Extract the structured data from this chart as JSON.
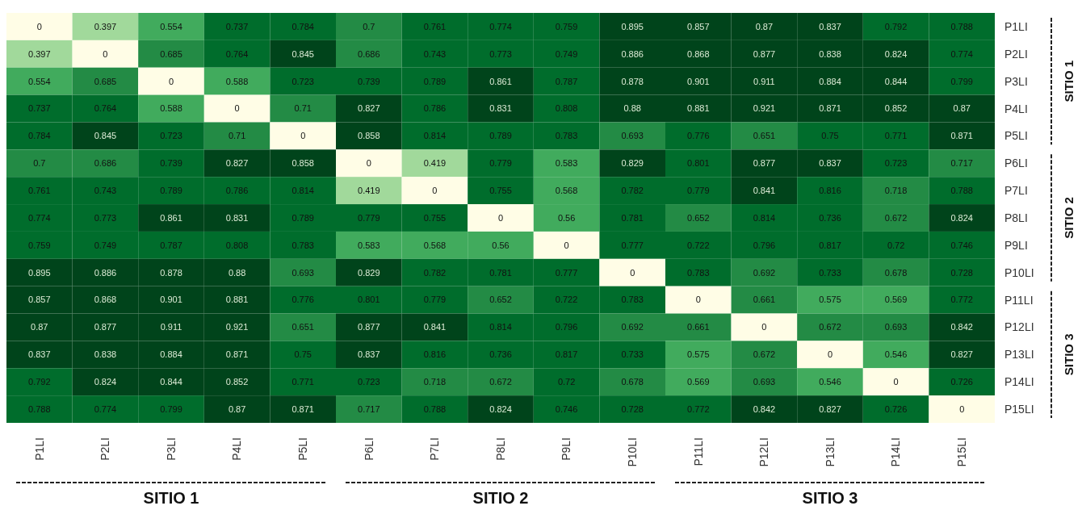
{
  "chart_data": {
    "type": "heatmap",
    "categories": [
      "P1LI",
      "P2LI",
      "P3LI",
      "P4LI",
      "P5LI",
      "P6LI",
      "P7LI",
      "P8LI",
      "P9LI",
      "P10LI",
      "P11LI",
      "P12LI",
      "P13LI",
      "P14LI",
      "P15LI"
    ],
    "y_categories": [
      "P1LI",
      "P2LI",
      "P3LI",
      "P4LI",
      "P5LI",
      "P6LI",
      "P7LI",
      "P8LI",
      "P9LI",
      "P10LI",
      "P11LI",
      "P12LI",
      "P13LI",
      "P14LI",
      "P15LI"
    ],
    "cells": [
      [
        0,
        0.397,
        0.554,
        0.737,
        0.784,
        0.7,
        0.761,
        0.774,
        0.759,
        0.895,
        0.857,
        0.87,
        0.837,
        0.792,
        0.788
      ],
      [
        0.397,
        0,
        0.685,
        0.764,
        0.845,
        0.686,
        0.743,
        0.773,
        0.749,
        0.886,
        0.868,
        0.877,
        0.838,
        0.824,
        0.774
      ],
      [
        0.554,
        0.685,
        0,
        0.588,
        0.723,
        0.739,
        0.789,
        0.861,
        0.787,
        0.878,
        0.901,
        0.911,
        0.884,
        0.844,
        0.799
      ],
      [
        0.737,
        0.764,
        0.588,
        0,
        0.71,
        0.827,
        0.786,
        0.831,
        0.808,
        0.88,
        0.881,
        0.921,
        0.871,
        0.852,
        0.87
      ],
      [
        0.784,
        0.845,
        0.723,
        0.71,
        0,
        0.858,
        0.814,
        0.789,
        0.783,
        0.693,
        0.776,
        0.651,
        0.75,
        0.771,
        0.871
      ],
      [
        0.7,
        0.686,
        0.739,
        0.827,
        0.858,
        0,
        0.419,
        0.779,
        0.583,
        0.829,
        0.801,
        0.877,
        0.837,
        0.723,
        0.717
      ],
      [
        0.761,
        0.743,
        0.789,
        0.786,
        0.814,
        0.419,
        0,
        0.755,
        0.568,
        0.782,
        0.779,
        0.841,
        0.816,
        0.718,
        0.788
      ],
      [
        0.774,
        0.773,
        0.861,
        0.831,
        0.789,
        0.779,
        0.755,
        0,
        0.56,
        0.781,
        0.652,
        0.814,
        0.736,
        0.672,
        0.824
      ],
      [
        0.759,
        0.749,
        0.787,
        0.808,
        0.783,
        0.583,
        0.568,
        0.56,
        0,
        0.777,
        0.722,
        0.796,
        0.817,
        0.72,
        0.746
      ],
      [
        0.895,
        0.886,
        0.878,
        0.88,
        0.693,
        0.829,
        0.782,
        0.781,
        0.777,
        0,
        0.783,
        0.692,
        0.733,
        0.678,
        0.728
      ],
      [
        0.857,
        0.868,
        0.901,
        0.881,
        0.776,
        0.801,
        0.779,
        0.652,
        0.722,
        0.783,
        0,
        0.661,
        0.575,
        0.569,
        0.772
      ],
      [
        0.87,
        0.877,
        0.911,
        0.921,
        0.651,
        0.877,
        0.841,
        0.814,
        0.796,
        0.692,
        0.661,
        0,
        0.672,
        0.693,
        0.842
      ],
      [
        0.837,
        0.838,
        0.884,
        0.871,
        0.75,
        0.837,
        0.816,
        0.736,
        0.817,
        0.733,
        0.575,
        0.672,
        0,
        0.546,
        0.827
      ],
      [
        0.792,
        0.824,
        0.844,
        0.852,
        0.771,
        0.723,
        0.718,
        0.672,
        0.72,
        0.678,
        0.569,
        0.693,
        0.546,
        0,
        0.726
      ],
      [
        0.788,
        0.774,
        0.799,
        0.87,
        0.871,
        0.717,
        0.788,
        0.824,
        0.746,
        0.728,
        0.772,
        0.842,
        0.827,
        0.726,
        0
      ]
    ],
    "data_labels": true,
    "annotations": [
      "SITIO 1",
      "SITIO 2",
      "SITIO 3",
      "SITIO 1",
      "SITIO 2",
      "SITIO 3"
    ]
  }
}
